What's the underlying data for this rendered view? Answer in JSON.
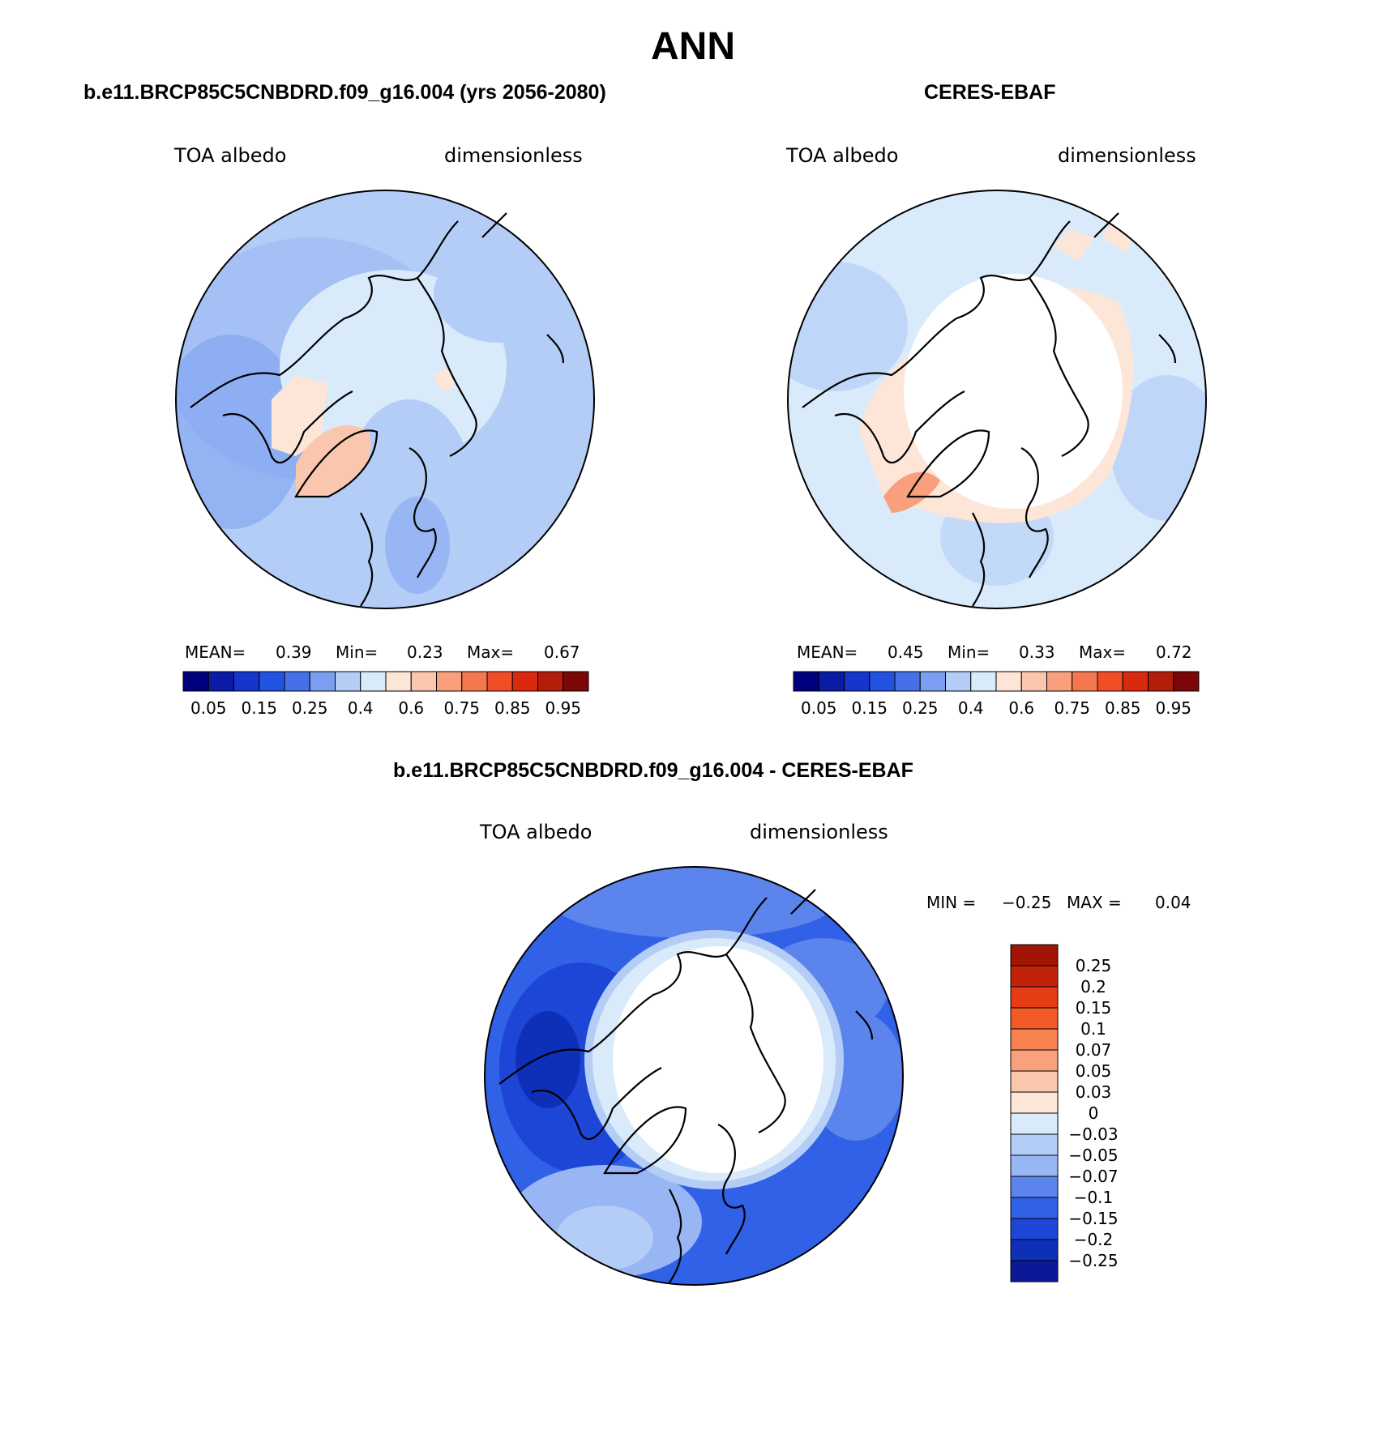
{
  "page_title": "ANN",
  "panels": [
    {
      "title": "b.e11.BRCP85C5CNBDRD.f09_g16.004 (yrs 2056-2080)",
      "variable": "TOA albedo",
      "units": "dimensionless",
      "stats": {
        "mean_label": "MEAN=",
        "mean": "0.39",
        "min_label": "Min=",
        "min": "0.23",
        "max_label": "Max=",
        "max": "0.67"
      }
    },
    {
      "title": "CERES-EBAF",
      "variable": "TOA albedo",
      "units": "dimensionless",
      "stats": {
        "mean_label": "MEAN=",
        "mean": "0.45",
        "min_label": "Min=",
        "min": "0.33",
        "max_label": "Max=",
        "max": "0.72"
      }
    },
    {
      "title": "b.e11.BRCP85C5CNBDRD.f09_g16.004 - CERES-EBAF",
      "variable": "TOA albedo",
      "units": "dimensionless",
      "stats": {
        "min_label": "MIN =",
        "min": "−0.25",
        "max_label": "MAX =",
        "max": "0.04"
      }
    }
  ],
  "colorbar_abs": {
    "colors": [
      "#00007f",
      "#0a1ca6",
      "#1535cc",
      "#2153e0",
      "#4670e8",
      "#7a9ff0",
      "#b4cdf6",
      "#d9eafa",
      "#fde6d8",
      "#fbc6ae",
      "#f8a07e",
      "#f57750",
      "#f14d26",
      "#d92a10",
      "#b51d0b",
      "#7c0707"
    ],
    "labels": [
      "0.05",
      "0.15",
      "0.25",
      "0.4",
      "0.6",
      "0.75",
      "0.85",
      "0.95"
    ]
  },
  "colorbar_diff": {
    "colors_top_to_bottom": [
      "#a01504",
      "#c0230a",
      "#e63c16",
      "#f45a28",
      "#f7824f",
      "#f9a07c",
      "#fbc6ae",
      "#fde6d8",
      "#d9eafa",
      "#b4cdf6",
      "#98b6f3",
      "#5b84ec",
      "#3161e6",
      "#1d46d6",
      "#0e2fb8",
      "#0a1a96"
    ],
    "labels": [
      "0.25",
      "0.2",
      "0.15",
      "0.1",
      "0.07",
      "0.05",
      "0.03",
      "0",
      "−0.03",
      "−0.05",
      "−0.07",
      "−0.1",
      "−0.15",
      "−0.2",
      "−0.25"
    ]
  }
}
